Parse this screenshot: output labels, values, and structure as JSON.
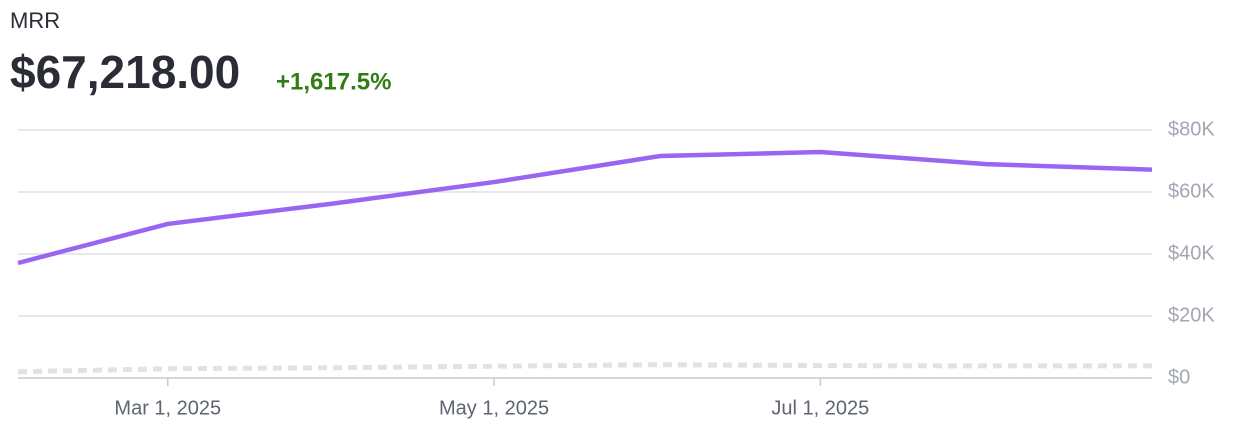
{
  "chart_data": {
    "type": "line",
    "title": "MRR",
    "subtitle": "$67,218.00",
    "annotation": "+1,617.5%",
    "x": [
      "2025-02-01",
      "2025-03-01",
      "2025-04-01",
      "2025-05-01",
      "2025-06-01",
      "2025-07-01",
      "2025-08-01",
      "2025-09-01"
    ],
    "series": [
      {
        "color": "#9966f2",
        "style": "solid",
        "values": [
          37100,
          49700,
          56300,
          63200,
          71600,
          72900,
          69000,
          67218
        ]
      },
      {
        "color": "#e2e2e6",
        "style": "dashed",
        "values": [
          2000,
          3000,
          3300,
          3800,
          4300,
          4000,
          3900,
          3900
        ]
      }
    ],
    "xlim": [
      "2025-02-01",
      "2025-09-01"
    ],
    "xticks": [
      {
        "value": "2025-03-01",
        "label": "Mar 1, 2025"
      },
      {
        "value": "2025-05-01",
        "label": "May 1, 2025"
      },
      {
        "value": "2025-07-01",
        "label": "Jul 1, 2025"
      }
    ],
    "ylim": [
      0,
      80000
    ],
    "yticks": [
      {
        "value": 0,
        "label": "$0"
      },
      {
        "value": 20000,
        "label": "$20K"
      },
      {
        "value": 40000,
        "label": "$40K"
      },
      {
        "value": 60000,
        "label": "$60K"
      },
      {
        "value": 80000,
        "label": "$80K"
      }
    ],
    "grid": true
  }
}
